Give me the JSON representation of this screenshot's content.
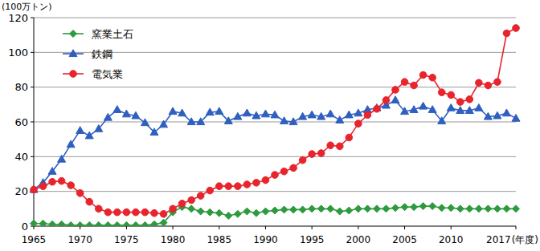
{
  "chart_data": {
    "type": "line",
    "y_label": "(100万トン)",
    "x_label": "(年度)",
    "x": [
      1965,
      1966,
      1967,
      1968,
      1969,
      1970,
      1971,
      1972,
      1973,
      1974,
      1975,
      1976,
      1977,
      1978,
      1979,
      1980,
      1981,
      1982,
      1983,
      1984,
      1985,
      1986,
      1987,
      1988,
      1989,
      1990,
      1991,
      1992,
      1993,
      1994,
      1995,
      1996,
      1997,
      1998,
      1999,
      2000,
      2001,
      2002,
      2003,
      2004,
      2005,
      2006,
      2007,
      2008,
      2009,
      2010,
      2011,
      2012,
      2013,
      2014,
      2015,
      2016,
      2017
    ],
    "xlim": [
      1965,
      2017
    ],
    "xticks": [
      1965,
      1970,
      1975,
      1980,
      1985,
      1990,
      1995,
      2000,
      2005,
      2010,
      2017
    ],
    "ylim": [
      0,
      120
    ],
    "yticks": [
      0,
      20,
      40,
      60,
      80,
      100,
      120
    ],
    "grid": true,
    "legend": "upper left",
    "series": [
      {
        "name": "窯業土石",
        "color": "#2e9a3e",
        "marker": "diamond",
        "values": [
          1.5,
          1.5,
          1,
          1,
          0.5,
          0.5,
          0.5,
          0.5,
          0.5,
          0.5,
          0.5,
          0.5,
          0.5,
          1,
          2,
          8,
          11,
          10,
          8.5,
          8,
          7.5,
          6,
          7,
          8.5,
          7.5,
          8.5,
          9,
          9.5,
          9.5,
          9.5,
          10,
          10,
          10,
          8.5,
          9,
          10,
          10,
          10,
          10,
          10.5,
          11,
          11,
          11.5,
          11.5,
          10.5,
          10.5,
          10,
          10,
          10,
          10,
          10,
          10,
          10
        ]
      },
      {
        "name": "鉄鋼",
        "color": "#2f5fbf",
        "marker": "triangle",
        "values": [
          21,
          25,
          31.5,
          38.5,
          47,
          55,
          52,
          56,
          62.5,
          67,
          64.5,
          63.5,
          59.5,
          54,
          58.5,
          66,
          65,
          60,
          60,
          65.5,
          66,
          60.5,
          63,
          65,
          63.5,
          64.5,
          64,
          60.5,
          60,
          63,
          64,
          63,
          64.5,
          61,
          64,
          65,
          67,
          68,
          69.5,
          72.5,
          66,
          67,
          69,
          67,
          60.5,
          68,
          66.5,
          66.5,
          68,
          63,
          63.5,
          65,
          62
        ]
      },
      {
        "name": "電気業",
        "color": "#e8242c",
        "marker": "circle",
        "values": [
          21,
          23,
          25.5,
          26,
          23.5,
          19,
          14,
          10,
          8,
          8,
          8,
          8,
          8,
          7.5,
          7,
          10,
          13,
          15,
          17.5,
          20.5,
          23,
          23,
          23,
          24,
          25,
          26.5,
          29.5,
          31.5,
          33.5,
          38,
          41.5,
          42,
          46.5,
          46,
          51,
          59,
          64,
          67.5,
          72.5,
          78.5,
          83,
          81,
          87,
          85.5,
          77,
          75.5,
          71.5,
          73,
          82.5,
          81,
          83,
          111,
          114
        ]
      }
    ]
  }
}
